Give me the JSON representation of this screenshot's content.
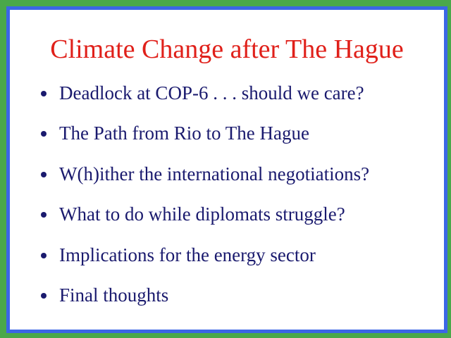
{
  "slide": {
    "title": "Climate Change after The Hague",
    "bullets": [
      "Deadlock at COP-6 . . . should we care?",
      "The Path from Rio to The Hague",
      "W(h)ither the international negotiations?",
      "What to do while diplomats struggle?",
      "Implications for the energy sector",
      "Final thoughts"
    ]
  },
  "colors": {
    "outer_border": "#4aa84a",
    "inner_border": "#3b66e6",
    "title": "#e0201a",
    "bullet_text": "#1a1a6e",
    "background": "#ffffff"
  }
}
